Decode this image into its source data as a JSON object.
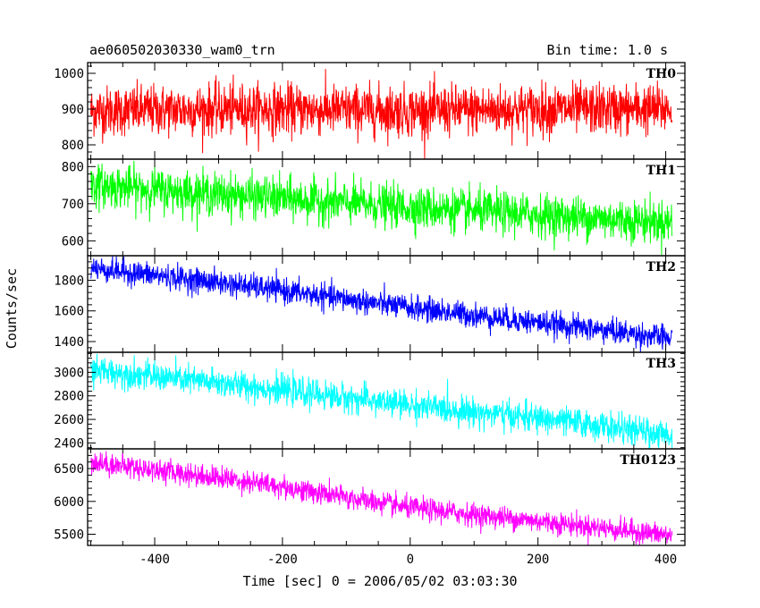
{
  "chart_data": {
    "type": "line",
    "title_left": "ae060502030330_wam0_trn",
    "title_right": "Bin time: 1.0 s",
    "xlabel": "Time [sec] 0 = 2006/05/02 03:03:30",
    "ylabel": "Counts/sec",
    "xlim": [
      -505,
      430
    ],
    "xticks": [
      -400,
      -200,
      0,
      200,
      400
    ],
    "grid": false,
    "panels": [
      {
        "name": "TH0",
        "color": "#ff0000",
        "ylim": [
          760,
          1030
        ],
        "yticks": [
          800,
          900,
          1000
        ],
        "trend": {
          "x": [
            -500,
            -250,
            0,
            250,
            410
          ],
          "y": [
            895,
            900,
            895,
            900,
            900
          ]
        },
        "noise_sd": 35
      },
      {
        "name": "TH1",
        "color": "#00ff00",
        "ylim": [
          560,
          820
        ],
        "yticks": [
          600,
          700,
          800
        ],
        "trend": {
          "x": [
            -500,
            -250,
            0,
            250,
            410
          ],
          "y": [
            750,
            720,
            690,
            665,
            650
          ]
        },
        "noise_sd": 28
      },
      {
        "name": "TH2",
        "color": "#0000ff",
        "ylim": [
          1330,
          1960
        ],
        "yticks": [
          1400,
          1600,
          1800
        ],
        "trend": {
          "x": [
            -500,
            -250,
            0,
            250,
            410
          ],
          "y": [
            1880,
            1760,
            1620,
            1500,
            1420
          ]
        },
        "noise_sd": 40
      },
      {
        "name": "TH3",
        "color": "#00ffff",
        "ylim": [
          2350,
          3170
        ],
        "yticks": [
          2400,
          2600,
          2800,
          3000
        ],
        "trend": {
          "x": [
            -500,
            -250,
            0,
            250,
            410
          ],
          "y": [
            3020,
            2880,
            2720,
            2580,
            2460
          ]
        },
        "noise_sd": 60
      },
      {
        "name": "TH0123",
        "color": "#ff00ff",
        "ylim": [
          5330,
          6800
        ],
        "yticks": [
          5500,
          6000,
          6500
        ],
        "trend": {
          "x": [
            -500,
            -250,
            0,
            250,
            410
          ],
          "y": [
            6600,
            6300,
            5900,
            5650,
            5480
          ]
        },
        "noise_sd": 85
      }
    ]
  }
}
